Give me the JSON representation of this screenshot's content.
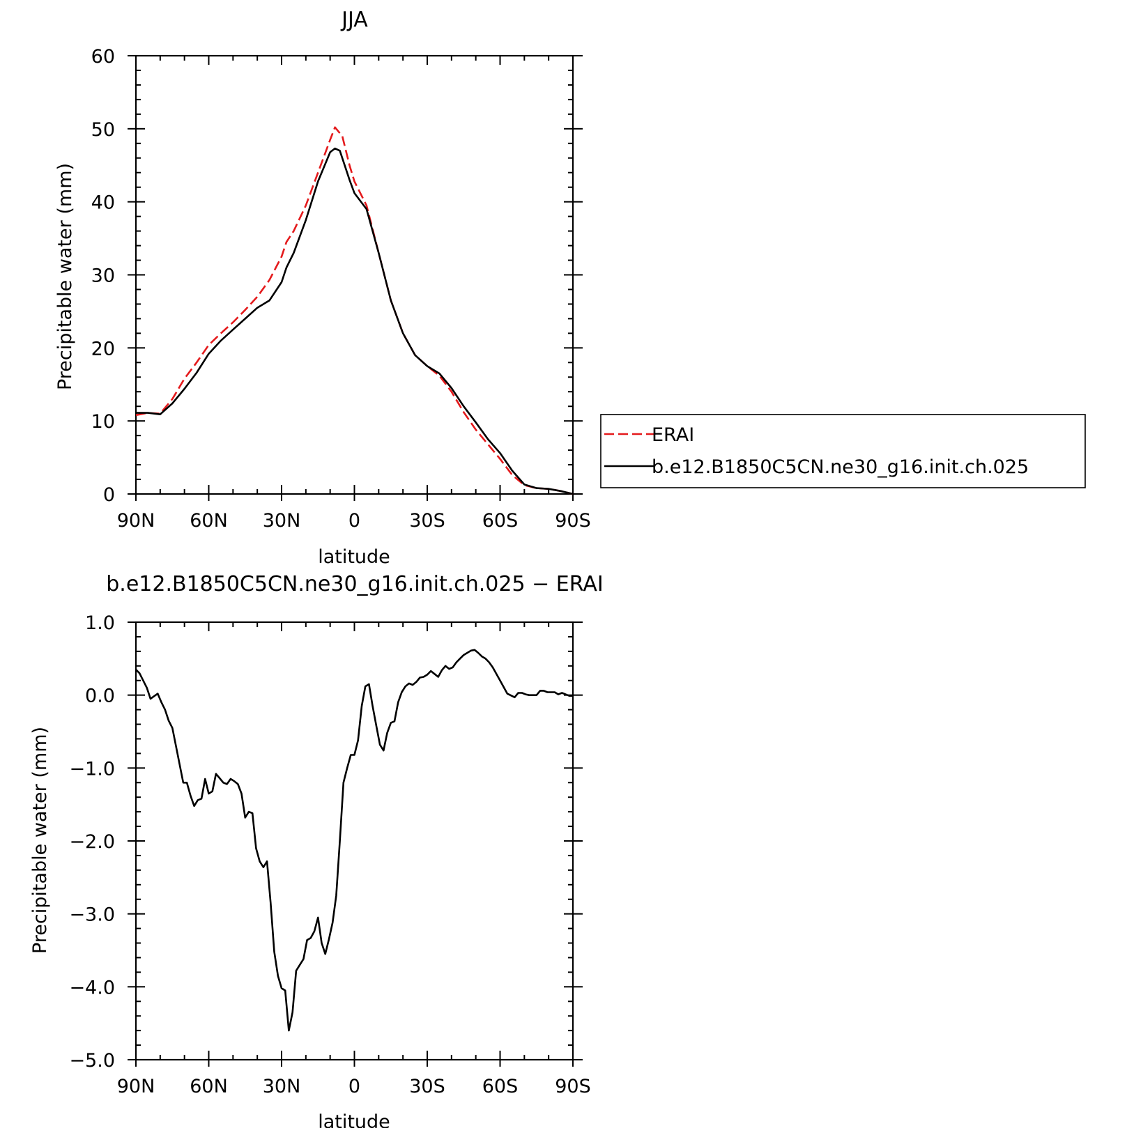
{
  "chart_data": [
    {
      "type": "line",
      "title": "JJA",
      "xlabel": "latitude",
      "ylabel": "Precipitable water (mm)",
      "xlim": [
        90,
        -90
      ],
      "ylim": [
        0,
        60
      ],
      "x_ticks": [
        90,
        60,
        30,
        0,
        -30,
        -60,
        -90
      ],
      "x_tick_labels": [
        "90N",
        "60N",
        "30N",
        "0",
        "30S",
        "60S",
        "90S"
      ],
      "y_ticks": [
        0,
        10,
        20,
        30,
        40,
        50,
        60
      ],
      "y_tick_labels": [
        "0",
        "10",
        "20",
        "30",
        "40",
        "50",
        "60"
      ],
      "legend_position": "outside-right",
      "series": [
        {
          "name": "ERAI",
          "color": "#e41a1c",
          "dash": "dashed",
          "x": [
            90,
            85,
            80,
            75,
            70,
            65,
            60,
            55,
            50,
            45,
            40,
            35,
            30,
            28,
            25,
            20,
            15,
            10,
            8,
            5,
            2,
            0,
            -5,
            -10,
            -15,
            -20,
            -25,
            -30,
            -35,
            -40,
            -45,
            -50,
            -55,
            -60,
            -65,
            -70,
            -75,
            -80,
            -85,
            -90
          ],
          "y": [
            10.8,
            11.1,
            11.0,
            13.0,
            15.8,
            18.0,
            20.4,
            22.0,
            23.5,
            25.2,
            27.0,
            29.3,
            32.5,
            34.5,
            36.0,
            39.5,
            44.0,
            48.5,
            50.2,
            49.0,
            45.0,
            42.8,
            39.5,
            33.0,
            26.5,
            22.0,
            19.0,
            17.5,
            16.2,
            14.0,
            11.2,
            8.8,
            6.8,
            4.8,
            2.6,
            1.2,
            0.8,
            0.7,
            0.4,
            0.0
          ]
        },
        {
          "name": "b.e12.B1850C5CN.ne30_g16.init.ch.025",
          "color": "#000000",
          "dash": "solid",
          "x": [
            90,
            85,
            80,
            75,
            70,
            65,
            60,
            55,
            50,
            45,
            40,
            35,
            30,
            28,
            25,
            20,
            15,
            10,
            8,
            6,
            5,
            2,
            0,
            -5,
            -10,
            -15,
            -20,
            -25,
            -30,
            -35,
            -40,
            -45,
            -50,
            -55,
            -60,
            -65,
            -70,
            -75,
            -80,
            -85,
            -90
          ],
          "y": [
            11.1,
            11.1,
            10.9,
            12.4,
            14.4,
            16.6,
            19.2,
            21.0,
            22.5,
            24.0,
            25.5,
            26.5,
            29.0,
            31.0,
            33.0,
            37.5,
            42.8,
            46.8,
            47.3,
            47.0,
            46.0,
            43.0,
            41.2,
            39.0,
            33.0,
            26.5,
            22.0,
            19.0,
            17.5,
            16.5,
            14.5,
            12.0,
            9.8,
            7.5,
            5.6,
            3.2,
            1.3,
            0.8,
            0.7,
            0.4,
            0.0
          ]
        }
      ]
    },
    {
      "type": "line",
      "title": "b.e12.B1850C5CN.ne30_g16.init.ch.025 − ERAI",
      "xlabel": "latitude",
      "ylabel": "Precipitable water (mm)",
      "xlim": [
        90,
        -90
      ],
      "ylim": [
        -5.0,
        1.0
      ],
      "x_ticks": [
        90,
        60,
        30,
        0,
        -30,
        -60,
        -90
      ],
      "x_tick_labels": [
        "90N",
        "60N",
        "30N",
        "0",
        "30S",
        "60S",
        "90S"
      ],
      "y_ticks": [
        1.0,
        0.0,
        -1.0,
        -2.0,
        -3.0,
        -4.0,
        -5.0
      ],
      "y_tick_labels": [
        "1.0",
        "0.0",
        "−1.0",
        "−2.0",
        "−3.0",
        "−4.0",
        "−5.0"
      ],
      "series": [
        {
          "color": "#000000",
          "dash": "solid",
          "x": [
            90,
            88.5,
            87,
            85.5,
            84,
            81,
            79.5,
            78,
            76.5,
            75,
            73.5,
            72,
            70.5,
            69,
            67.5,
            66,
            64.5,
            63,
            61.5,
            60,
            58.5,
            57,
            55.5,
            54,
            52.5,
            51,
            49.5,
            48,
            46.5,
            45,
            43.5,
            42,
            40.5,
            39,
            37.5,
            36,
            34.5,
            33,
            31.5,
            30,
            28.5,
            27,
            25.5,
            24,
            22.5,
            21,
            19.5,
            18,
            16.5,
            15,
            13.5,
            12,
            10.5,
            9,
            7.5,
            6,
            4.5,
            3,
            1.5,
            0,
            -1.5,
            -3,
            -4.5,
            -6,
            -7.5,
            -9,
            -10.5,
            -12,
            -13.5,
            -15,
            -16.5,
            -18,
            -19.5,
            -21,
            -22.5,
            -24,
            -25.5,
            -27,
            -28.5,
            -30,
            -31.5,
            -33,
            -34.5,
            -36,
            -37.5,
            -39,
            -40.5,
            -42,
            -43.5,
            -45,
            -46.5,
            -48,
            -49.5,
            -51,
            -52.5,
            -54,
            -55.5,
            -57,
            -60,
            -63,
            -66,
            -67.5,
            -69,
            -70.5,
            -72,
            -75,
            -76.5,
            -78,
            -79.5,
            -81,
            -82.5,
            -84,
            -85.5,
            -87,
            -88.5,
            -90
          ],
          "y": [
            0.35,
            0.3,
            0.2,
            0.1,
            -0.05,
            0.02,
            -0.1,
            -0.2,
            -0.35,
            -0.45,
            -0.7,
            -0.95,
            -1.2,
            -1.2,
            -1.38,
            -1.52,
            -1.44,
            -1.42,
            -1.15,
            -1.35,
            -1.32,
            -1.08,
            -1.14,
            -1.2,
            -1.22,
            -1.15,
            -1.18,
            -1.22,
            -1.35,
            -1.68,
            -1.6,
            -1.62,
            -2.1,
            -2.28,
            -2.36,
            -2.28,
            -2.85,
            -3.52,
            -3.85,
            -4.02,
            -4.05,
            -4.6,
            -4.35,
            -3.78,
            -3.7,
            -3.62,
            -3.36,
            -3.33,
            -3.24,
            -3.05,
            -3.4,
            -3.55,
            -3.35,
            -3.12,
            -2.75,
            -2.0,
            -1.2,
            -1.0,
            -0.82,
            -0.82,
            -0.62,
            -0.15,
            0.12,
            0.15,
            -0.15,
            -0.42,
            -0.68,
            -0.76,
            -0.52,
            -0.38,
            -0.36,
            -0.1,
            0.04,
            0.12,
            0.16,
            0.14,
            0.18,
            0.24,
            0.25,
            0.28,
            0.33,
            0.29,
            0.25,
            0.34,
            0.4,
            0.36,
            0.38,
            0.45,
            0.5,
            0.55,
            0.58,
            0.61,
            0.62,
            0.58,
            0.53,
            0.5,
            0.45,
            0.38,
            0.2,
            0.02,
            -0.03,
            0.03,
            0.03,
            0.01,
            0.0,
            0.0,
            0.06,
            0.06,
            0.04,
            0.04,
            0.04,
            0.01,
            0.03,
            0.01,
            -0.01,
            -0.01
          ]
        }
      ]
    }
  ]
}
